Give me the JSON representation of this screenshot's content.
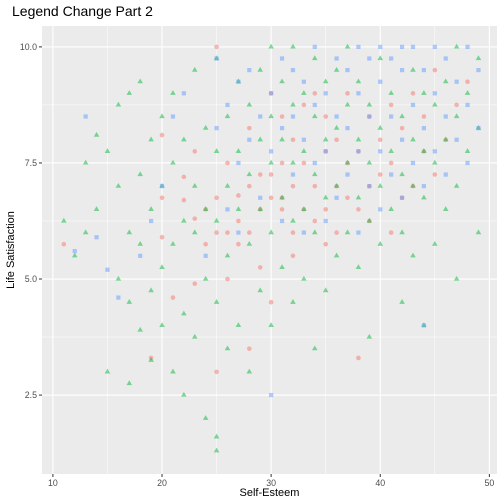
{
  "chart_data": {
    "type": "scatter",
    "title": "Legend Change Part 2",
    "xlabel": "Self-Esteem",
    "ylabel": "Life Satisfaction",
    "xlim": [
      9.0,
      50.7
    ],
    "ylim": [
      0.8,
      10.45
    ],
    "xticks": [
      10,
      20,
      30,
      40,
      50
    ],
    "xtick_labels": [
      "10",
      "20",
      "30",
      "40",
      "50"
    ],
    "yticks": [
      2.5,
      5.0,
      7.5,
      10.0
    ],
    "ytick_labels": [
      "2.5",
      "5.0",
      "7.5",
      "10.0"
    ],
    "grid": true,
    "legend": "none",
    "colors": {
      "panel": "#ebebeb",
      "grid": "#ffffff",
      "red": "#f8766d",
      "green": "#00ba38",
      "blue": "#619cff"
    },
    "series": [
      {
        "shape": "circle",
        "color": "#f8766d",
        "points": [
          [
            11,
            5.75
          ],
          [
            19,
            3.3
          ],
          [
            20,
            5.9
          ],
          [
            20,
            6.75
          ],
          [
            20,
            8.1
          ],
          [
            21,
            4.6
          ],
          [
            22,
            6.7
          ],
          [
            22,
            7.2
          ],
          [
            23,
            4.9
          ],
          [
            23,
            6.3
          ],
          [
            23,
            7.75
          ],
          [
            24,
            5.75
          ],
          [
            24,
            6.5
          ],
          [
            25,
            3.0
          ],
          [
            25,
            6.0
          ],
          [
            25,
            6.75
          ],
          [
            25,
            10.0
          ],
          [
            26,
            5.0
          ],
          [
            26,
            6.0
          ],
          [
            26,
            7.5
          ],
          [
            27,
            5.75
          ],
          [
            27,
            6.25
          ],
          [
            27,
            6.8
          ],
          [
            28,
            3.5
          ],
          [
            28,
            6.0
          ],
          [
            28,
            7.0
          ],
          [
            28,
            8.25
          ],
          [
            29,
            5.25
          ],
          [
            29,
            6.5
          ],
          [
            29,
            7.25
          ],
          [
            30,
            4.5
          ],
          [
            30,
            6.75
          ],
          [
            30,
            7.25
          ],
          [
            30,
            9.0
          ],
          [
            31,
            6.5
          ],
          [
            31,
            6.75
          ],
          [
            31,
            7.5
          ],
          [
            31,
            8.5
          ],
          [
            32,
            5.5
          ],
          [
            32,
            6.0
          ],
          [
            32,
            7.0
          ],
          [
            32,
            8.0
          ],
          [
            33,
            6.5
          ],
          [
            33,
            7.5
          ],
          [
            33,
            8.75
          ],
          [
            34,
            6.25
          ],
          [
            34,
            7.0
          ],
          [
            34,
            9.0
          ],
          [
            35,
            5.75
          ],
          [
            35,
            6.5
          ],
          [
            35,
            7.75
          ],
          [
            35,
            8.5
          ],
          [
            36,
            6.0
          ],
          [
            36,
            7.0
          ],
          [
            36,
            8.0
          ],
          [
            37,
            6.75
          ],
          [
            37,
            7.5
          ],
          [
            37,
            9.0
          ],
          [
            38,
            3.3
          ],
          [
            38,
            6.5
          ],
          [
            38,
            7.75
          ],
          [
            39,
            6.25
          ],
          [
            39,
            7.0
          ],
          [
            39,
            8.5
          ],
          [
            40,
            7.25
          ],
          [
            40,
            8.0
          ],
          [
            41,
            6.0
          ],
          [
            41,
            7.5
          ],
          [
            41,
            8.75
          ],
          [
            42,
            6.75
          ],
          [
            42,
            8.25
          ],
          [
            43,
            7.0
          ],
          [
            43,
            9.0
          ],
          [
            44,
            7.75
          ],
          [
            44,
            8.5
          ],
          [
            45,
            7.25
          ],
          [
            45,
            9.5
          ],
          [
            46,
            8.0
          ],
          [
            47,
            8.75
          ],
          [
            48,
            9.25
          ]
        ]
      },
      {
        "shape": "triangle",
        "color": "#00ba38",
        "points": [
          [
            11,
            6.25
          ],
          [
            12,
            5.5
          ],
          [
            13,
            7.5
          ],
          [
            13,
            6.0
          ],
          [
            14,
            8.1
          ],
          [
            14,
            6.5
          ],
          [
            15,
            7.75
          ],
          [
            15,
            3.0
          ],
          [
            16,
            5.0
          ],
          [
            16,
            7.0
          ],
          [
            16,
            8.75
          ],
          [
            17,
            4.5
          ],
          [
            17,
            6.0
          ],
          [
            17,
            9.0
          ],
          [
            17,
            2.75
          ],
          [
            18,
            3.9
          ],
          [
            18,
            5.75
          ],
          [
            18,
            7.25
          ],
          [
            18,
            9.25
          ],
          [
            19,
            4.75
          ],
          [
            19,
            6.5
          ],
          [
            19,
            8.0
          ],
          [
            19,
            3.25
          ],
          [
            20,
            5.25
          ],
          [
            20,
            7.0
          ],
          [
            20,
            8.5
          ],
          [
            20,
            4.0
          ],
          [
            21,
            3.0
          ],
          [
            21,
            5.75
          ],
          [
            21,
            7.5
          ],
          [
            21,
            9.0
          ],
          [
            22,
            4.25
          ],
          [
            22,
            6.25
          ],
          [
            22,
            8.0
          ],
          [
            22,
            2.5
          ],
          [
            23,
            3.75
          ],
          [
            23,
            6.0
          ],
          [
            23,
            7.0
          ],
          [
            23,
            9.5
          ],
          [
            24,
            2.0
          ],
          [
            24,
            5.0
          ],
          [
            24,
            6.5
          ],
          [
            24,
            8.25
          ],
          [
            25,
            1.3
          ],
          [
            25,
            1.6
          ],
          [
            25,
            4.5
          ],
          [
            25,
            6.25
          ],
          [
            25,
            7.75
          ],
          [
            25,
            9.75
          ],
          [
            26,
            3.5
          ],
          [
            26,
            5.5
          ],
          [
            26,
            7.0
          ],
          [
            26,
            8.5
          ],
          [
            27,
            4.0
          ],
          [
            27,
            6.5
          ],
          [
            27,
            7.75
          ],
          [
            27,
            9.25
          ],
          [
            28,
            3.0
          ],
          [
            28,
            5.75
          ],
          [
            28,
            7.25
          ],
          [
            28,
            8.75
          ],
          [
            29,
            4.75
          ],
          [
            29,
            6.5
          ],
          [
            29,
            8.0
          ],
          [
            29,
            9.5
          ],
          [
            30,
            4.0
          ],
          [
            30,
            6.0
          ],
          [
            30,
            7.5
          ],
          [
            30,
            8.5
          ],
          [
            30,
            10.0
          ],
          [
            31,
            5.25
          ],
          [
            31,
            6.75
          ],
          [
            31,
            8.0
          ],
          [
            31,
            9.25
          ],
          [
            32,
            4.5
          ],
          [
            32,
            6.25
          ],
          [
            32,
            7.5
          ],
          [
            32,
            8.75
          ],
          [
            32,
            10.0
          ],
          [
            33,
            5.0
          ],
          [
            33,
            6.5
          ],
          [
            33,
            7.75
          ],
          [
            33,
            9.0
          ],
          [
            34,
            3.5
          ],
          [
            34,
            6.0
          ],
          [
            34,
            7.25
          ],
          [
            34,
            8.5
          ],
          [
            34,
            9.75
          ],
          [
            35,
            4.75
          ],
          [
            35,
            6.75
          ],
          [
            35,
            8.0
          ],
          [
            35,
            9.25
          ],
          [
            36,
            5.5
          ],
          [
            36,
            7.0
          ],
          [
            36,
            8.25
          ],
          [
            36,
            9.5
          ],
          [
            37,
            6.0
          ],
          [
            37,
            7.5
          ],
          [
            37,
            8.75
          ],
          [
            37,
            10.0
          ],
          [
            38,
            5.25
          ],
          [
            38,
            6.75
          ],
          [
            38,
            8.0
          ],
          [
            38,
            9.25
          ],
          [
            39,
            3.75
          ],
          [
            39,
            6.25
          ],
          [
            39,
            7.5
          ],
          [
            39,
            8.75
          ],
          [
            40,
            5.75
          ],
          [
            40,
            7.0
          ],
          [
            40,
            8.25
          ],
          [
            40,
            9.75
          ],
          [
            41,
            6.5
          ],
          [
            41,
            7.75
          ],
          [
            41,
            9.0
          ],
          [
            42,
            4.5
          ],
          [
            42,
            6.0
          ],
          [
            42,
            7.25
          ],
          [
            42,
            8.5
          ],
          [
            43,
            5.5
          ],
          [
            43,
            7.0
          ],
          [
            43,
            8.0
          ],
          [
            43,
            9.5
          ],
          [
            44,
            4.0
          ],
          [
            44,
            6.75
          ],
          [
            44,
            7.75
          ],
          [
            44,
            9.0
          ],
          [
            45,
            5.75
          ],
          [
            45,
            7.5
          ],
          [
            45,
            8.75
          ],
          [
            46,
            6.5
          ],
          [
            46,
            8.0
          ],
          [
            46,
            9.25
          ],
          [
            47,
            5.0
          ],
          [
            47,
            7.0
          ],
          [
            47,
            8.5
          ],
          [
            47,
            10.0
          ],
          [
            48,
            7.75
          ],
          [
            48,
            9.0
          ],
          [
            49,
            6.0
          ],
          [
            49,
            8.25
          ],
          [
            49,
            9.75
          ]
        ]
      },
      {
        "shape": "square",
        "color": "#619cff",
        "points": [
          [
            12,
            5.6
          ],
          [
            13,
            8.5
          ],
          [
            14,
            5.9
          ],
          [
            15,
            5.2
          ],
          [
            16,
            4.6
          ],
          [
            18,
            5.5
          ],
          [
            19,
            6.25
          ],
          [
            20,
            7.0
          ],
          [
            21,
            8.5
          ],
          [
            22,
            9.0
          ],
          [
            24,
            5.5
          ],
          [
            25,
            8.25
          ],
          [
            25,
            9.75
          ],
          [
            26,
            6.5
          ],
          [
            26,
            8.75
          ],
          [
            27,
            6.0
          ],
          [
            27,
            7.5
          ],
          [
            27,
            9.25
          ],
          [
            28,
            8.0
          ],
          [
            28,
            9.5
          ],
          [
            29,
            6.75
          ],
          [
            29,
            8.5
          ],
          [
            30,
            2.5
          ],
          [
            30,
            7.75
          ],
          [
            30,
            9.0
          ],
          [
            31,
            6.25
          ],
          [
            31,
            8.25
          ],
          [
            31,
            9.75
          ],
          [
            32,
            7.25
          ],
          [
            32,
            8.5
          ],
          [
            32,
            9.5
          ],
          [
            33,
            6.0
          ],
          [
            33,
            8.0
          ],
          [
            33,
            9.25
          ],
          [
            34,
            7.5
          ],
          [
            34,
            8.75
          ],
          [
            34,
            10.0
          ],
          [
            35,
            6.25
          ],
          [
            35,
            7.75
          ],
          [
            35,
            9.0
          ],
          [
            36,
            6.75
          ],
          [
            36,
            8.5
          ],
          [
            36,
            9.75
          ],
          [
            37,
            7.25
          ],
          [
            37,
            8.25
          ],
          [
            37,
            9.5
          ],
          [
            38,
            6.0
          ],
          [
            38,
            7.75
          ],
          [
            38,
            9.0
          ],
          [
            38,
            10.0
          ],
          [
            39,
            7.0
          ],
          [
            39,
            8.5
          ],
          [
            39,
            9.75
          ],
          [
            40,
            6.5
          ],
          [
            40,
            7.75
          ],
          [
            40,
            9.25
          ],
          [
            40,
            10.0
          ],
          [
            41,
            7.25
          ],
          [
            41,
            8.5
          ],
          [
            41,
            9.75
          ],
          [
            42,
            6.75
          ],
          [
            42,
            8.0
          ],
          [
            42,
            9.5
          ],
          [
            42,
            10.0
          ],
          [
            43,
            7.5
          ],
          [
            43,
            8.75
          ],
          [
            43,
            10.0
          ],
          [
            44,
            4.0
          ],
          [
            44,
            7.0
          ],
          [
            44,
            8.25
          ],
          [
            44,
            9.5
          ],
          [
            45,
            7.75
          ],
          [
            45,
            9.0
          ],
          [
            45,
            10.0
          ],
          [
            46,
            7.25
          ],
          [
            46,
            8.5
          ],
          [
            46,
            9.75
          ],
          [
            47,
            8.0
          ],
          [
            47,
            9.25
          ],
          [
            48,
            7.5
          ],
          [
            48,
            8.75
          ],
          [
            48,
            10.0
          ],
          [
            49,
            8.25
          ],
          [
            49,
            9.5
          ]
        ]
      }
    ]
  }
}
